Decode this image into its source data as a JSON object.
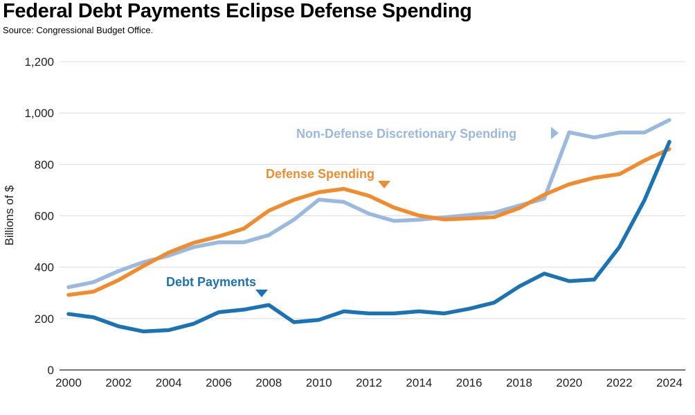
{
  "title": "Federal Debt Payments Eclipse Defense Spending",
  "source": "Source: Congressional Budget Office.",
  "chart_data": {
    "type": "line",
    "ylabel": "Billions of $",
    "xlabel": "",
    "ylim": [
      0,
      1200
    ],
    "xlim": [
      2000,
      2024
    ],
    "yticks": [
      0,
      200,
      400,
      600,
      800,
      1000,
      1200
    ],
    "ytick_labels": [
      "0",
      "200",
      "400",
      "600",
      "800",
      "1,000",
      "1,200"
    ],
    "xticks": [
      2000,
      2002,
      2004,
      2006,
      2008,
      2010,
      2012,
      2014,
      2016,
      2018,
      2020,
      2022,
      2024
    ],
    "xtick_labels": [
      "2000",
      "2002",
      "2004",
      "2006",
      "2008",
      "2010",
      "2012",
      "2014",
      "2016",
      "2018",
      "2020",
      "2022",
      "2024"
    ],
    "grid": true,
    "x": [
      2000,
      2001,
      2002,
      2003,
      2004,
      2005,
      2006,
      2007,
      2008,
      2009,
      2010,
      2011,
      2012,
      2013,
      2014,
      2015,
      2016,
      2017,
      2018,
      2019,
      2020,
      2021,
      2022,
      2023,
      2024
    ],
    "series": [
      {
        "name": "Non-Defense Discretionary Spending",
        "color": "#9bb9de",
        "values": [
          322,
          342,
          385,
          420,
          445,
          478,
          497,
          497,
          525,
          585,
          663,
          654,
          608,
          580,
          585,
          594,
          603,
          612,
          640,
          667,
          925,
          905,
          924,
          924,
          973
        ]
      },
      {
        "name": "Defense Spending",
        "color": "#f08c2e",
        "values": [
          292,
          305,
          350,
          405,
          457,
          495,
          520,
          550,
          620,
          662,
          692,
          705,
          678,
          632,
          601,
          586,
          590,
          595,
          630,
          682,
          723,
          748,
          762,
          815,
          860
        ]
      },
      {
        "name": "Debt Payments",
        "color": "#1b73b3",
        "values": [
          218,
          205,
          170,
          150,
          155,
          180,
          225,
          235,
          253,
          186,
          195,
          228,
          220,
          220,
          228,
          220,
          238,
          262,
          325,
          375,
          346,
          352,
          478,
          660,
          888
        ]
      }
    ],
    "annotations": [
      {
        "text": "Non-Defense Discretionary Spending",
        "series": 0
      },
      {
        "text": "Defense Spending",
        "series": 1
      },
      {
        "text": "Debt Payments",
        "series": 2
      }
    ]
  }
}
